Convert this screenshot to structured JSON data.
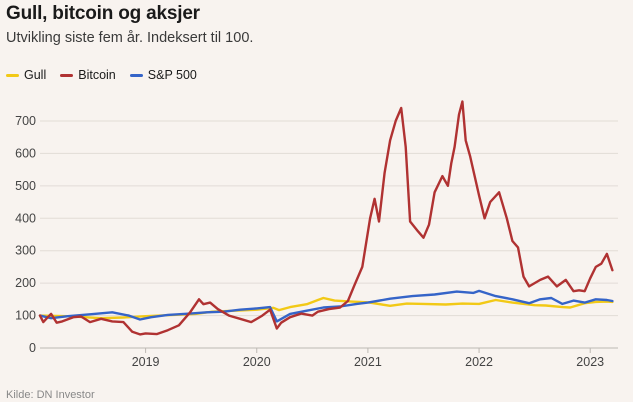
{
  "title": "Gull, bitcoin og aksjer",
  "subtitle": "Utvikling siste fem år. Indeksert til 100.",
  "source": "Kilde: DN Investor",
  "chart_data": {
    "type": "line",
    "title": "Gull, bitcoin og aksjer",
    "subtitle": "Utvikling siste fem år. Indeksert til 100.",
    "xlabel": "",
    "ylabel": "",
    "xlim": [
      2018.05,
      2023.25
    ],
    "ylim": [
      0,
      780
    ],
    "yticks": [
      0,
      100,
      200,
      300,
      400,
      500,
      600,
      700
    ],
    "xtick_labels": [
      "2019",
      "2020",
      "2021",
      "2022",
      "2023"
    ],
    "xtick_values": [
      2019.0,
      2020.0,
      2021.0,
      2022.0,
      2023.0
    ],
    "legend_position": "top-left",
    "grid": "horizontal",
    "series": [
      {
        "name": "Gull",
        "color": "#f2c916",
        "points": [
          [
            2018.05,
            100
          ],
          [
            2018.3,
            98
          ],
          [
            2018.6,
            92
          ],
          [
            2018.8,
            94
          ],
          [
            2019.0,
            98
          ],
          [
            2019.2,
            101
          ],
          [
            2019.45,
            105
          ],
          [
            2019.6,
            112
          ],
          [
            2019.8,
            115
          ],
          [
            2020.0,
            118
          ],
          [
            2020.15,
            124
          ],
          [
            2020.2,
            117
          ],
          [
            2020.3,
            126
          ],
          [
            2020.45,
            135
          ],
          [
            2020.55,
            148
          ],
          [
            2020.6,
            154
          ],
          [
            2020.7,
            146
          ],
          [
            2020.85,
            143
          ],
          [
            2021.0,
            141
          ],
          [
            2021.2,
            130
          ],
          [
            2021.35,
            137
          ],
          [
            2021.5,
            136
          ],
          [
            2021.7,
            134
          ],
          [
            2021.85,
            137
          ],
          [
            2022.0,
            136
          ],
          [
            2022.15,
            148
          ],
          [
            2022.3,
            140
          ],
          [
            2022.5,
            132
          ],
          [
            2022.6,
            131
          ],
          [
            2022.75,
            126
          ],
          [
            2022.82,
            125
          ],
          [
            2022.95,
            138
          ],
          [
            2023.05,
            142
          ],
          [
            2023.15,
            143
          ],
          [
            2023.2,
            142
          ]
        ]
      },
      {
        "name": "Bitcoin",
        "color": "#b03232",
        "points": [
          [
            2018.05,
            100
          ],
          [
            2018.08,
            80
          ],
          [
            2018.12,
            95
          ],
          [
            2018.15,
            105
          ],
          [
            2018.2,
            78
          ],
          [
            2018.25,
            82
          ],
          [
            2018.35,
            95
          ],
          [
            2018.42,
            97
          ],
          [
            2018.5,
            80
          ],
          [
            2018.6,
            90
          ],
          [
            2018.7,
            82
          ],
          [
            2018.8,
            80
          ],
          [
            2018.88,
            50
          ],
          [
            2018.95,
            42
          ],
          [
            2019.0,
            45
          ],
          [
            2019.1,
            43
          ],
          [
            2019.2,
            55
          ],
          [
            2019.3,
            70
          ],
          [
            2019.4,
            110
          ],
          [
            2019.48,
            150
          ],
          [
            2019.52,
            135
          ],
          [
            2019.58,
            140
          ],
          [
            2019.65,
            120
          ],
          [
            2019.75,
            100
          ],
          [
            2019.85,
            90
          ],
          [
            2019.95,
            80
          ],
          [
            2020.05,
            100
          ],
          [
            2020.12,
            118
          ],
          [
            2020.18,
            60
          ],
          [
            2020.22,
            78
          ],
          [
            2020.3,
            95
          ],
          [
            2020.4,
            106
          ],
          [
            2020.5,
            100
          ],
          [
            2020.55,
            112
          ],
          [
            2020.65,
            120
          ],
          [
            2020.75,
            125
          ],
          [
            2020.82,
            145
          ],
          [
            2020.88,
            195
          ],
          [
            2020.95,
            250
          ],
          [
            2021.02,
            400
          ],
          [
            2021.06,
            460
          ],
          [
            2021.1,
            390
          ],
          [
            2021.15,
            540
          ],
          [
            2021.2,
            640
          ],
          [
            2021.25,
            700
          ],
          [
            2021.3,
            740
          ],
          [
            2021.34,
            620
          ],
          [
            2021.38,
            390
          ],
          [
            2021.45,
            360
          ],
          [
            2021.5,
            340
          ],
          [
            2021.55,
            380
          ],
          [
            2021.6,
            480
          ],
          [
            2021.67,
            530
          ],
          [
            2021.72,
            500
          ],
          [
            2021.75,
            570
          ],
          [
            2021.78,
            620
          ],
          [
            2021.82,
            720
          ],
          [
            2021.85,
            760
          ],
          [
            2021.88,
            640
          ],
          [
            2021.92,
            590
          ],
          [
            2022.0,
            470
          ],
          [
            2022.05,
            400
          ],
          [
            2022.1,
            450
          ],
          [
            2022.18,
            480
          ],
          [
            2022.25,
            400
          ],
          [
            2022.3,
            330
          ],
          [
            2022.35,
            310
          ],
          [
            2022.4,
            220
          ],
          [
            2022.45,
            190
          ],
          [
            2022.55,
            210
          ],
          [
            2022.62,
            220
          ],
          [
            2022.7,
            190
          ],
          [
            2022.78,
            210
          ],
          [
            2022.85,
            175
          ],
          [
            2022.9,
            178
          ],
          [
            2022.95,
            175
          ],
          [
            2023.0,
            215
          ],
          [
            2023.05,
            250
          ],
          [
            2023.1,
            260
          ],
          [
            2023.15,
            290
          ],
          [
            2023.2,
            240
          ]
        ]
      },
      {
        "name": "S&P 500",
        "color": "#3564c8",
        "points": [
          [
            2018.05,
            100
          ],
          [
            2018.15,
            92
          ],
          [
            2018.3,
            98
          ],
          [
            2018.5,
            104
          ],
          [
            2018.7,
            110
          ],
          [
            2018.85,
            100
          ],
          [
            2018.95,
            88
          ],
          [
            2019.05,
            95
          ],
          [
            2019.2,
            102
          ],
          [
            2019.4,
            106
          ],
          [
            2019.55,
            110
          ],
          [
            2019.7,
            112
          ],
          [
            2019.85,
            118
          ],
          [
            2020.0,
            122
          ],
          [
            2020.12,
            126
          ],
          [
            2020.18,
            82
          ],
          [
            2020.3,
            105
          ],
          [
            2020.45,
            115
          ],
          [
            2020.6,
            125
          ],
          [
            2020.75,
            128
          ],
          [
            2020.9,
            136
          ],
          [
            2021.0,
            140
          ],
          [
            2021.2,
            152
          ],
          [
            2021.4,
            160
          ],
          [
            2021.6,
            165
          ],
          [
            2021.8,
            174
          ],
          [
            2021.95,
            170
          ],
          [
            2022.0,
            176
          ],
          [
            2022.15,
            160
          ],
          [
            2022.3,
            150
          ],
          [
            2022.45,
            138
          ],
          [
            2022.55,
            150
          ],
          [
            2022.65,
            154
          ],
          [
            2022.75,
            136
          ],
          [
            2022.85,
            146
          ],
          [
            2022.95,
            140
          ],
          [
            2023.05,
            150
          ],
          [
            2023.15,
            148
          ],
          [
            2023.2,
            145
          ]
        ]
      }
    ]
  }
}
